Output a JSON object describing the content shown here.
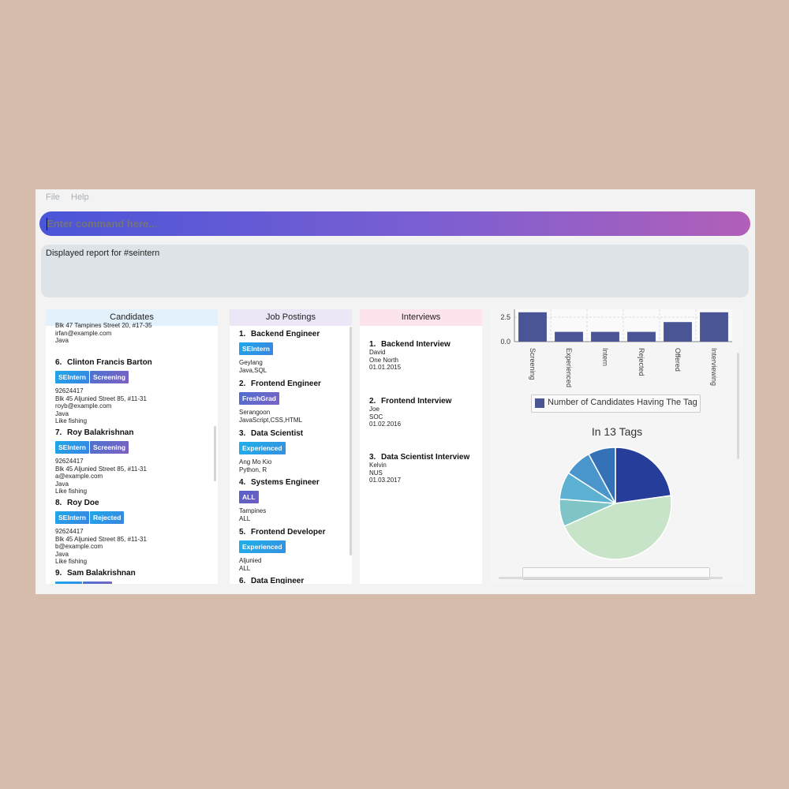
{
  "menu": {
    "file": "File",
    "help": "Help"
  },
  "command": {
    "placeholder": "Enter command here..."
  },
  "result": {
    "text": "Displayed report for #seintern"
  },
  "panels": {
    "candidates": {
      "title": "Candidates"
    },
    "jobs": {
      "title": "Job Postings"
    },
    "interviews": {
      "title": "Interviews"
    }
  },
  "candidates": {
    "top_partial": {
      "address": "Blk 47 Tampines Street 20, #17-35",
      "email": "irfan@example.com",
      "skill": "Java"
    },
    "items": [
      {
        "index": "6.",
        "name": "Clinton Francis Barton",
        "tags": [
          "SEIntern",
          "Screening"
        ],
        "phone": "92624417",
        "address": "Blk 45 Aljunied Street 85, #11-31",
        "email": "royb@example.com",
        "skill": "Java",
        "hobby": "Like fishing"
      },
      {
        "index": "7.",
        "name": "Roy Balakrishnan",
        "tags": [
          "SEIntern",
          "Screening"
        ],
        "phone": "92624417",
        "address": "Blk 45 Aljunied Street 85, #11-31",
        "email": "a@example.com",
        "skill": "Java",
        "hobby": "Like fishing"
      },
      {
        "index": "8.",
        "name": "Roy Doe",
        "tags": [
          "SEIntern",
          "Rejected"
        ],
        "phone": "92624417",
        "address": "Blk 45 Aljunied Street 85, #11-31",
        "email": "b@example.com",
        "skill": "Java",
        "hobby": "Like fishing"
      },
      {
        "index": "9.",
        "name": "Sam Balakrishnan"
      }
    ]
  },
  "jobs": [
    {
      "index": "1.",
      "title": "Backend Engineer",
      "tag": "SEIntern",
      "location": "Geylang",
      "skills": "Java,SQL"
    },
    {
      "index": "2.",
      "title": "Frontend Engineer",
      "tag": "FreshGrad",
      "location": "Serangoon",
      "skills": "JavaScript,CSS,HTML"
    },
    {
      "index": "3.",
      "title": "Data Scientist",
      "tag": "Experienced",
      "location": "Ang Mo Kio",
      "skills": "Python, R"
    },
    {
      "index": "4.",
      "title": "Systems Engineer",
      "tag": "ALL",
      "location": "Tampines",
      "skills": "ALL"
    },
    {
      "index": "5.",
      "title": "Frontend Developer",
      "tag": "Experienced",
      "location": "Aljunied",
      "skills": "ALL"
    },
    {
      "index": "6.",
      "title": "Data Engineer"
    }
  ],
  "interviews": [
    {
      "index": "1.",
      "title": "Backend Interview",
      "interviewee": "David",
      "location": "One North",
      "date": "01.01.2015"
    },
    {
      "index": "2.",
      "title": "Frontend Interview",
      "interviewee": "Joe",
      "location": "SOC",
      "date": "01.02.2016"
    },
    {
      "index": "3.",
      "title": "Data Scientist Interview",
      "interviewee": "Kelvin",
      "location": "NUS",
      "date": "01.03.2017"
    }
  ],
  "chart_data": [
    {
      "type": "bar",
      "categories": [
        "Screening",
        "Experienced",
        "Intern",
        "Rejected",
        "Offered",
        "Interviewing"
      ],
      "values": [
        3,
        1,
        1,
        1,
        2,
        3
      ],
      "y_ticks": [
        "2.5",
        "0.0"
      ],
      "legend": "Number of Candidates Having The Tag",
      "color": "#4a5596"
    },
    {
      "type": "pie",
      "title": "In 13 Tags",
      "slices": [
        {
          "value": 23,
          "color": "#273d9a"
        },
        {
          "value": 46,
          "color": "#c8e4c8"
        },
        {
          "value": 8,
          "color": "#7fc4c6"
        },
        {
          "value": 8,
          "color": "#5cb1d2"
        },
        {
          "value": 8,
          "color": "#4a95cb"
        },
        {
          "value": 8,
          "color": "#3471b6"
        }
      ]
    }
  ]
}
